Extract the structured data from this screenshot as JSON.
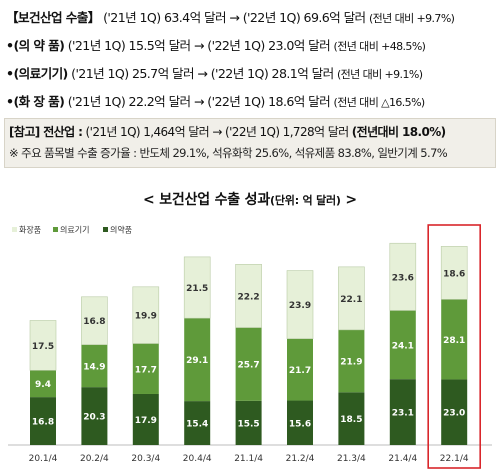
{
  "summary": {
    "line1": {
      "head": "【보건산업 수출】",
      "body": "('21년 1Q) 63.4억 달러 → ('22년 1Q) 69.6억 달러",
      "paren": "(전년 대비 +9.7%)"
    },
    "line2": {
      "head": "•(의 약 품)",
      "body": "('21년 1Q) 15.5억 달러 → ('22년 1Q) 23.0억 달러",
      "paren": "(전년 대비 +48.5%)"
    },
    "line3": {
      "head": "•(의료기기)",
      "body": "('21년 1Q) 25.7억 달러 → ('22년 1Q) 28.1억 달러",
      "paren": "(전년 대비 +9.1%)"
    },
    "line4": {
      "head": "•(화 장 품)",
      "body": "('21년 1Q) 22.2억 달러 → ('22년 1Q) 18.6억 달러",
      "paren": "(전년 대비 △16.5%)"
    }
  },
  "note": {
    "head": "[참고] 전산업 :",
    "body": "('21년 1Q) 1,464억 달러 → ('22년 1Q) 1,728억 달러",
    "tail": "(전년대비 18.0%)",
    "line2": "※ 주요 품목별 수출 증가율 : 반도체 29.1%, 석유화학 25.6%, 석유제품 83.8%, 일반기계 5.7%"
  },
  "chart_title": {
    "main": "< 보건산업 수출 성과",
    "unit": "(단위: 억 달러)",
    "end": " >"
  },
  "colors": {
    "pharma": "#2e5a20",
    "medical": "#5f9a3a",
    "cosmetics": "#e6f0d8",
    "highlight": "#d9262b"
  },
  "chart_data": {
    "type": "bar",
    "stacked": true,
    "categories": [
      "20.1/4",
      "20.2/4",
      "20.3/4",
      "20.4/4",
      "21.1/4",
      "21.2/4",
      "21.3/4",
      "21.4/4",
      "22.1/4"
    ],
    "series": [
      {
        "name": "의약품",
        "values": [
          16.8,
          20.3,
          17.9,
          15.4,
          15.5,
          15.6,
          18.5,
          23.1,
          23.0
        ]
      },
      {
        "name": "의료기기",
        "values": [
          9.4,
          14.9,
          17.7,
          29.1,
          25.7,
          21.7,
          21.9,
          24.1,
          28.1
        ]
      },
      {
        "name": "화장품",
        "values": [
          17.5,
          16.8,
          19.9,
          21.5,
          22.2,
          23.9,
          22.1,
          23.6,
          18.6
        ]
      }
    ],
    "legend_order": [
      "화장품",
      "의료기기",
      "의약품"
    ],
    "legend_position": "top-left",
    "highlighted_category": "22.1/4"
  }
}
